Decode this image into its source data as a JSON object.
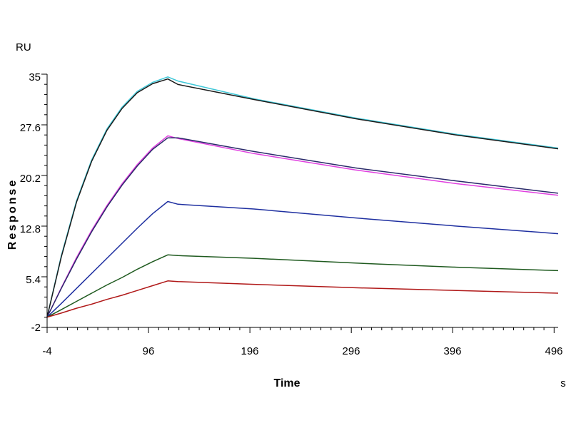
{
  "chart_data": {
    "type": "line",
    "title": "",
    "xlabel": "Time",
    "ylabel": "Response",
    "x_unit": "s",
    "y_unit": "RU",
    "xlim": [
      -4,
      500
    ],
    "ylim": [
      -2,
      35
    ],
    "x_ticks": [
      "-4",
      "96",
      "196",
      "296",
      "396",
      "496"
    ],
    "y_ticks": [
      "-2",
      "5.4",
      "12.8",
      "20.2",
      "27.6",
      "35"
    ],
    "grid": false,
    "legend": "none",
    "series": [
      {
        "color": "#40c8d8",
        "x": [
          -4,
          10,
          25,
          40,
          55,
          70,
          85,
          100,
          115,
          125,
          200,
          300,
          400,
          500
        ],
        "y": [
          -0.5,
          8.5,
          16.5,
          22.5,
          27.0,
          30.2,
          32.5,
          33.8,
          34.6,
          34.0,
          31.4,
          28.6,
          26.2,
          24.2
        ]
      },
      {
        "color": "#1a1a1a",
        "x": [
          -4,
          10,
          25,
          40,
          55,
          70,
          85,
          100,
          115,
          125,
          200,
          300,
          400,
          500
        ],
        "y": [
          -0.5,
          8.3,
          16.3,
          22.3,
          26.8,
          30.0,
          32.3,
          33.6,
          34.3,
          33.5,
          31.3,
          28.5,
          26.1,
          24.1
        ]
      },
      {
        "color": "#e040e0",
        "x": [
          -4,
          10,
          25,
          40,
          55,
          70,
          85,
          100,
          115,
          125,
          200,
          300,
          400,
          500
        ],
        "y": [
          -0.5,
          3.8,
          8.2,
          12.2,
          15.8,
          19.0,
          21.8,
          24.2,
          26.0,
          25.6,
          23.4,
          21.0,
          19.0,
          17.3
        ]
      },
      {
        "color": "#2a2a6a",
        "x": [
          -4,
          10,
          25,
          40,
          55,
          70,
          85,
          100,
          115,
          125,
          200,
          300,
          400,
          500
        ],
        "y": [
          -0.5,
          3.7,
          8.0,
          12.0,
          15.6,
          18.8,
          21.6,
          24.0,
          25.7,
          25.7,
          23.7,
          21.3,
          19.4,
          17.6
        ]
      },
      {
        "color": "#1e2fa0",
        "x": [
          -4,
          10,
          25,
          40,
          55,
          70,
          85,
          100,
          115,
          125,
          200,
          300,
          400,
          500
        ],
        "y": [
          -0.5,
          1.5,
          3.7,
          5.9,
          8.1,
          10.3,
          12.5,
          14.6,
          16.4,
          16.0,
          15.3,
          14.0,
          12.8,
          11.7
        ]
      },
      {
        "color": "#1f5a1f",
        "x": [
          -4,
          10,
          25,
          40,
          55,
          70,
          85,
          100,
          115,
          125,
          200,
          300,
          400,
          500
        ],
        "y": [
          -0.5,
          0.6,
          1.8,
          3.0,
          4.2,
          5.3,
          6.5,
          7.6,
          8.6,
          8.5,
          8.1,
          7.4,
          6.8,
          6.3
        ]
      },
      {
        "color": "#b01818",
        "x": [
          -4,
          10,
          25,
          40,
          55,
          70,
          85,
          100,
          115,
          125,
          200,
          300,
          400,
          500
        ],
        "y": [
          -0.5,
          0.1,
          0.8,
          1.4,
          2.1,
          2.7,
          3.4,
          4.1,
          4.8,
          4.7,
          4.3,
          3.8,
          3.4,
          3.0
        ]
      }
    ]
  }
}
